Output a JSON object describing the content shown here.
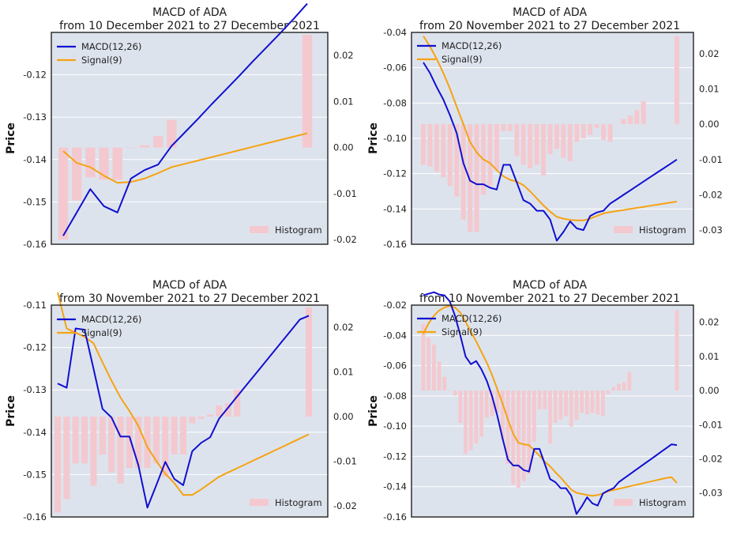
{
  "colors": {
    "macd": "#1010d0",
    "signal": "#f5a312",
    "histogram": "#f3c9cf",
    "plot_bg": "#dde3ed",
    "grid": "#ffffff"
  },
  "legend": {
    "macd_label": "MACD(12,26)",
    "signal_label": "Signal(9)",
    "hist_label": "Histogram"
  },
  "chart_data": [
    {
      "type": "line",
      "title": "MACD of ADA",
      "subtitle": "from 10 December 2021 to 27 December 2021",
      "ylabel": "Price",
      "ylim": [
        -0.16,
        -0.11
      ],
      "yticks": [
        -0.16,
        -0.15,
        -0.14,
        -0.13,
        -0.12
      ],
      "y2lim": [
        -0.021,
        0.025
      ],
      "y2ticks": [
        -0.02,
        -0.01,
        0.0,
        0.01,
        0.02
      ],
      "x": [
        0,
        1,
        2,
        3,
        4,
        5,
        6,
        7,
        8,
        9,
        10,
        11,
        12,
        13,
        14,
        15,
        16,
        17,
        18
      ],
      "series": [
        {
          "name": "MACD(12,26)",
          "axis": "left",
          "values": [
            -0.158,
            -0.1525,
            -0.147,
            -0.151,
            -0.1525,
            -0.1445,
            -0.1425,
            -0.1412,
            -0.1368,
            -0.1335,
            -0.1302,
            -0.1268,
            -0.1235,
            -0.1202,
            -0.1168,
            -0.1135,
            -0.1102,
            -0.1068,
            -0.1032
          ]
        },
        {
          "name": "Signal(9)",
          "axis": "left",
          "values": [
            -0.138,
            -0.1408,
            -0.1418,
            -0.1438,
            -0.1455,
            -0.1453,
            -0.1445,
            -0.1432,
            -0.1418,
            -0.141,
            -0.1402,
            -0.1394,
            -0.1386,
            -0.1378,
            -0.137,
            -0.1362,
            -0.1354,
            -0.1346,
            -0.1338
          ]
        },
        {
          "name": "Histogram",
          "axis": "right",
          "values": [
            -0.02,
            -0.0115,
            -0.0065,
            -0.007,
            -0.007,
            0.0,
            0.0005,
            0.0025,
            0.006,
            null,
            null,
            null,
            null,
            null,
            null,
            null,
            null,
            null,
            0.0245
          ]
        }
      ]
    },
    {
      "type": "line",
      "title": "MACD of ADA",
      "subtitle": "from 20 November 2021 to 27 December 2021",
      "ylabel": "Price",
      "ylim": [
        -0.16,
        -0.04
      ],
      "yticks": [
        -0.16,
        -0.14,
        -0.12,
        -0.1,
        -0.08,
        -0.06,
        -0.04
      ],
      "y2lim": [
        -0.034,
        0.026
      ],
      "y2ticks": [
        -0.03,
        -0.02,
        -0.01,
        0.0,
        0.01,
        0.02
      ],
      "x": [
        0,
        1,
        2,
        3,
        4,
        5,
        6,
        7,
        8,
        9,
        10,
        11,
        12,
        13,
        14,
        15,
        16,
        17,
        18,
        19,
        20,
        21,
        22,
        23,
        24,
        25,
        26,
        27,
        28,
        29,
        30,
        31,
        32,
        33,
        34,
        35,
        36,
        37,
        38
      ],
      "series": [
        {
          "name": "MACD(12,26)",
          "axis": "left",
          "values": [
            -0.057,
            -0.063,
            -0.071,
            -0.078,
            -0.087,
            -0.097,
            -0.114,
            -0.124,
            -0.126,
            -0.126,
            -0.128,
            -0.129,
            -0.115,
            -0.115,
            -0.125,
            -0.135,
            -0.137,
            -0.141,
            -0.141,
            -0.146,
            -0.158,
            -0.153,
            -0.147,
            -0.151,
            -0.152,
            -0.144,
            -0.142,
            -0.141,
            -0.137,
            -0.1345,
            -0.132,
            -0.1295,
            -0.127,
            -0.1245,
            -0.122,
            -0.1195,
            -0.117,
            -0.1145,
            -0.112
          ]
        },
        {
          "name": "Signal(9)",
          "axis": "left",
          "values": [
            -0.042,
            -0.048,
            -0.055,
            -0.063,
            -0.072,
            -0.082,
            -0.092,
            -0.102,
            -0.108,
            -0.112,
            -0.114,
            -0.118,
            -0.1215,
            -0.1235,
            -0.1245,
            -0.1265,
            -0.13,
            -0.134,
            -0.138,
            -0.1415,
            -0.1445,
            -0.1455,
            -0.1462,
            -0.1465,
            -0.1465,
            -0.1455,
            -0.144,
            -0.1425,
            -0.1418,
            -0.1412,
            -0.1406,
            -0.14,
            -0.1394,
            -0.1388,
            -0.1382,
            -0.1376,
            -0.137,
            -0.1364,
            -0.1358
          ]
        },
        {
          "name": "Histogram",
          "axis": "right",
          "values": [
            -0.0115,
            -0.012,
            -0.0135,
            -0.015,
            -0.0175,
            -0.0205,
            -0.027,
            -0.0305,
            -0.0305,
            -0.02,
            -0.0175,
            -0.013,
            -0.002,
            -0.002,
            -0.009,
            -0.0115,
            -0.0125,
            -0.0115,
            -0.0145,
            -0.0085,
            -0.007,
            -0.0095,
            -0.0105,
            -0.005,
            -0.004,
            -0.003,
            -0.001,
            -0.0045,
            -0.005,
            0.0,
            0.0015,
            0.0025,
            0.004,
            0.0065,
            null,
            null,
            null,
            null,
            0.025
          ]
        }
      ]
    },
    {
      "type": "line",
      "title": "MACD of ADA",
      "subtitle": "from 30 November 2021 to 27 December 2021",
      "ylabel": "Price",
      "ylim": [
        -0.16,
        -0.11
      ],
      "yticks": [
        -0.16,
        -0.15,
        -0.14,
        -0.13,
        -0.12,
        -0.11
      ],
      "y2lim": [
        -0.0225,
        0.025
      ],
      "y2ticks": [
        -0.02,
        -0.01,
        0.0,
        0.01,
        0.02
      ],
      "x": [
        0,
        1,
        2,
        3,
        4,
        5,
        6,
        7,
        8,
        9,
        10,
        11,
        12,
        13,
        14,
        15,
        16,
        17,
        18,
        19,
        20,
        21,
        22,
        23,
        24,
        25,
        26,
        27,
        28
      ],
      "series": [
        {
          "name": "MACD(12,26)",
          "axis": "left",
          "values": [
            -0.1285,
            -0.1295,
            -0.1155,
            -0.1158,
            -0.125,
            -0.1345,
            -0.1365,
            -0.141,
            -0.141,
            -0.1478,
            -0.1578,
            -0.1525,
            -0.147,
            -0.151,
            -0.1525,
            -0.1445,
            -0.1425,
            -0.1412,
            -0.1368,
            -0.1342,
            -0.1316,
            -0.129,
            -0.1264,
            -0.1238,
            -0.1212,
            -0.1186,
            -0.116,
            -0.1134,
            -0.1125
          ]
        },
        {
          "name": "Signal(9)",
          "axis": "left",
          "values": [
            -0.107,
            -0.1155,
            -0.1165,
            -0.1175,
            -0.119,
            -0.1235,
            -0.1278,
            -0.1318,
            -0.135,
            -0.1385,
            -0.1435,
            -0.1468,
            -0.1498,
            -0.152,
            -0.1548,
            -0.1548,
            -0.1535,
            -0.152,
            -0.1505,
            -0.1495,
            -0.1485,
            -0.1475,
            -0.1465,
            -0.1455,
            -0.1445,
            -0.1435,
            -0.1425,
            -0.1415,
            -0.1405
          ]
        },
        {
          "name": "Histogram",
          "axis": "right",
          "values": [
            -0.0215,
            -0.0185,
            -0.0105,
            -0.0105,
            -0.0155,
            -0.0085,
            -0.0125,
            -0.015,
            -0.0115,
            -0.0115,
            -0.0115,
            -0.0105,
            -0.0135,
            -0.0085,
            -0.0085,
            -0.0015,
            -0.0005,
            0.0005,
            0.0025,
            0.003,
            0.006,
            null,
            null,
            null,
            null,
            null,
            null,
            null,
            0.0245
          ]
        }
      ]
    },
    {
      "type": "line",
      "title": "MACD of ADA",
      "subtitle": "from 10 November 2021 to 27 December 2021",
      "ylabel": "Price",
      "ylim": [
        -0.16,
        -0.02
      ],
      "yticks": [
        -0.16,
        -0.14,
        -0.12,
        -0.1,
        -0.08,
        -0.06,
        -0.04,
        -0.02
      ],
      "y2lim": [
        -0.037,
        0.025
      ],
      "y2ticks": [
        -0.03,
        -0.02,
        -0.01,
        0.0,
        0.01,
        0.02
      ],
      "x": [
        0,
        1,
        2,
        3,
        4,
        5,
        6,
        7,
        8,
        9,
        10,
        11,
        12,
        13,
        14,
        15,
        16,
        17,
        18,
        19,
        20,
        21,
        22,
        23,
        24,
        25,
        26,
        27,
        28,
        29,
        30,
        31,
        32,
        33,
        34,
        35,
        36,
        37,
        38,
        39,
        40,
        41,
        42,
        43,
        44,
        45,
        46,
        47,
        48
      ],
      "series": [
        {
          "name": "MACD(12,26)",
          "axis": "left",
          "values": [
            -0.0135,
            -0.0125,
            -0.0115,
            -0.013,
            -0.0135,
            -0.0175,
            -0.027,
            -0.04,
            -0.054,
            -0.059,
            -0.057,
            -0.0625,
            -0.07,
            -0.08,
            -0.093,
            -0.108,
            -0.122,
            -0.126,
            -0.126,
            -0.129,
            -0.13,
            -0.115,
            -0.115,
            -0.125,
            -0.135,
            -0.137,
            -0.141,
            -0.141,
            -0.146,
            -0.158,
            -0.153,
            -0.147,
            -0.151,
            -0.1525,
            -0.1445,
            -0.1425,
            -0.141,
            -0.137,
            -0.1345,
            -0.132,
            -0.1295,
            -0.127,
            -0.1245,
            -0.122,
            -0.1195,
            -0.117,
            -0.1145,
            -0.112,
            -0.1125
          ]
        },
        {
          "name": "Signal(9)",
          "axis": "left",
          "values": [
            -0.039,
            -0.032,
            -0.027,
            -0.0235,
            -0.0215,
            -0.0205,
            -0.0215,
            -0.025,
            -0.031,
            -0.0375,
            -0.044,
            -0.051,
            -0.058,
            -0.066,
            -0.0755,
            -0.085,
            -0.0955,
            -0.105,
            -0.111,
            -0.112,
            -0.1125,
            -0.116,
            -0.1195,
            -0.1235,
            -0.1265,
            -0.1305,
            -0.134,
            -0.138,
            -0.142,
            -0.144,
            -0.1448,
            -0.1455,
            -0.146,
            -0.1455,
            -0.1445,
            -0.143,
            -0.1422,
            -0.1414,
            -0.1406,
            -0.1398,
            -0.139,
            -0.1382,
            -0.1374,
            -0.1366,
            -0.1358,
            -0.135,
            -0.1342,
            -0.1338,
            -0.1375
          ]
        },
        {
          "name": "Histogram",
          "axis": "right",
          "values": [
            0.0195,
            0.0155,
            0.0135,
            0.0085,
            0.004,
            0.0,
            -0.0015,
            -0.0095,
            -0.0185,
            -0.0175,
            -0.0155,
            -0.0135,
            -0.008,
            -0.0075,
            -0.0065,
            -0.0145,
            -0.0215,
            -0.0275,
            -0.0285,
            -0.0265,
            -0.0245,
            -0.015,
            -0.0055,
            -0.0055,
            -0.0155,
            -0.0095,
            -0.0085,
            -0.0075,
            -0.0105,
            -0.0085,
            -0.0065,
            -0.007,
            -0.0065,
            -0.007,
            -0.0075,
            -0.001,
            0.001,
            0.002,
            0.0025,
            0.0055,
            null,
            null,
            null,
            null,
            null,
            null,
            null,
            null,
            0.0235
          ]
        }
      ]
    }
  ]
}
